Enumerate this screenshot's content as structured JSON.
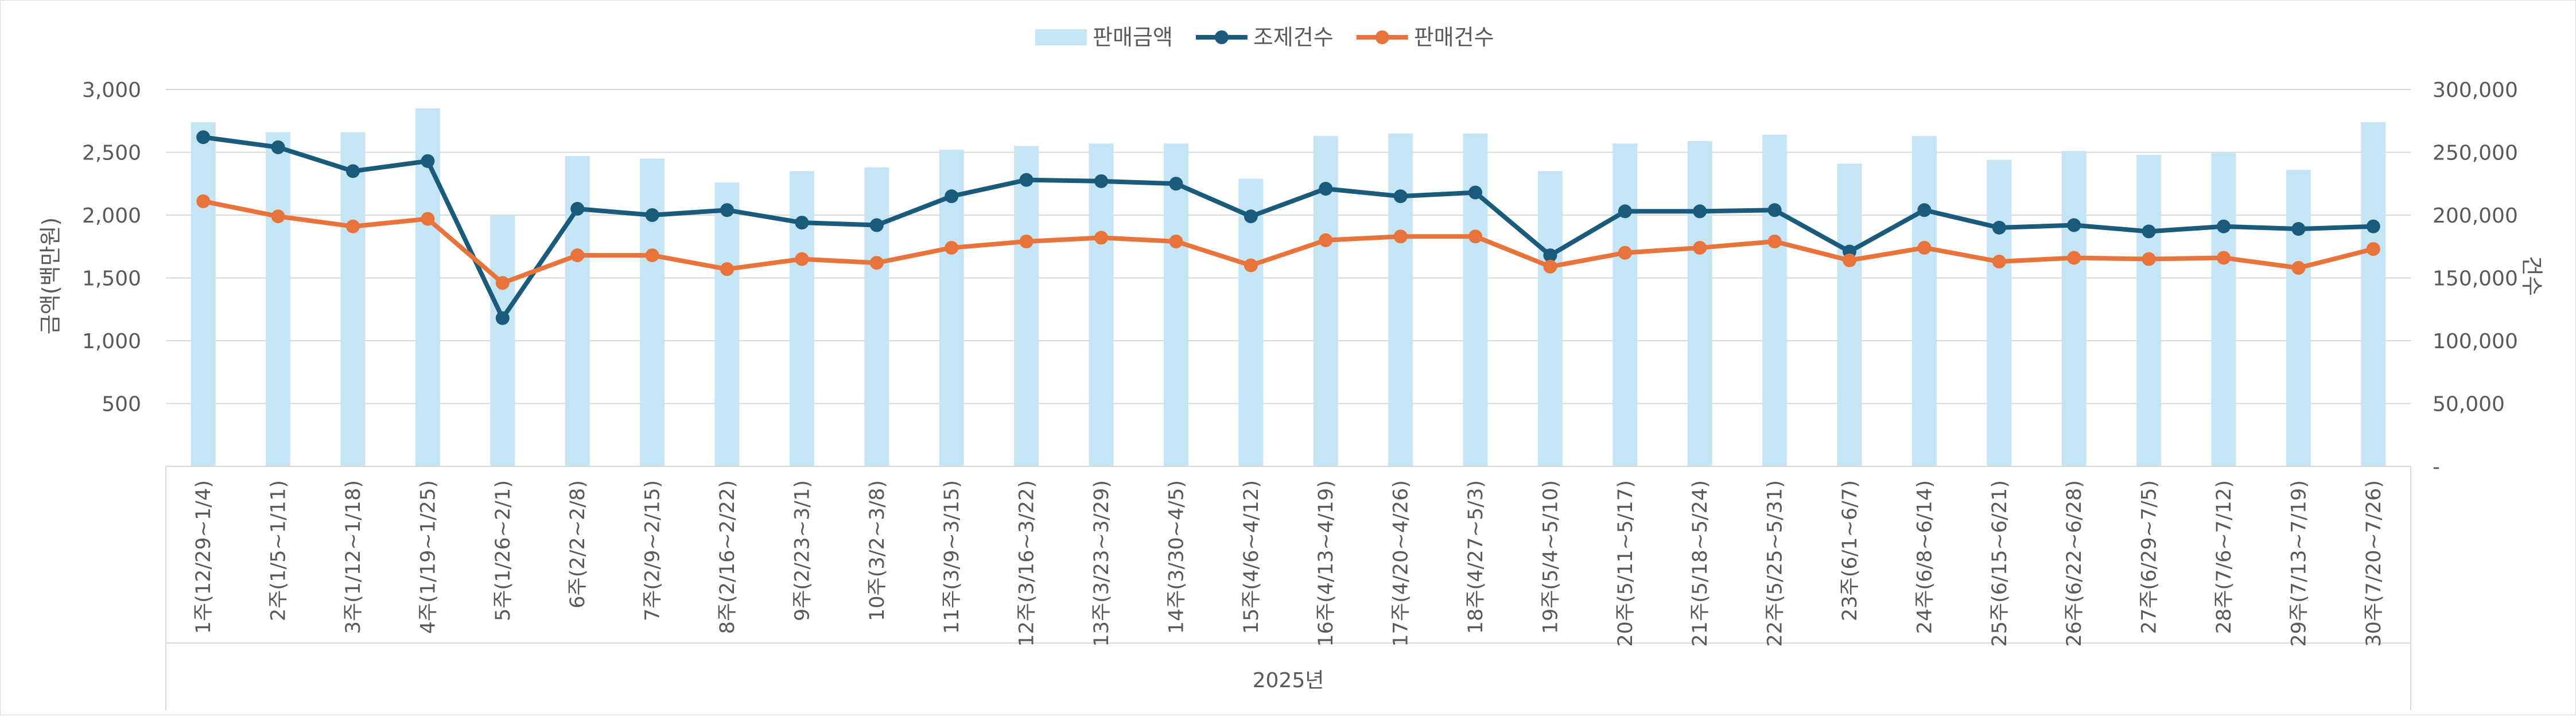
{
  "chart_data": {
    "type": "bar",
    "title": "",
    "xlabel": "2025년",
    "ylabel": "금액(백만원)",
    "y2label": "건수",
    "ylim": [
      0,
      3000
    ],
    "y2lim": [
      0,
      300000
    ],
    "yticks": [
      "500",
      "1,000",
      "1,500",
      "2,000",
      "2,500",
      "3,000"
    ],
    "y2ticks": [
      "-",
      "50,000",
      "100,000",
      "150,000",
      "200,000",
      "250,000",
      "300,000"
    ],
    "legend_position": "top-center",
    "grid": true,
    "categories": [
      "1주(12/29~1/4)",
      "2주(1/5~1/11)",
      "3주(1/12~1/18)",
      "4주(1/19~1/25)",
      "5주(1/26~2/1)",
      "6주(2/2~2/8)",
      "7주(2/9~2/15)",
      "8주(2/16~2/22)",
      "9주(2/23~3/1)",
      "10주(3/2~3/8)",
      "11주(3/9~3/15)",
      "12주(3/16~3/22)",
      "13주(3/23~3/29)",
      "14주(3/30~4/5)",
      "15주(4/6~4/12)",
      "16주(4/13~4/19)",
      "17주(4/20~4/26)",
      "18주(4/27~5/3)",
      "19주(5/4~5/10)",
      "20주(5/11~5/17)",
      "21주(5/18~5/24)",
      "22주(5/25~5/31)",
      "23주(6/1~6/7)",
      "24주(6/8~6/14)",
      "25주(6/15~6/21)",
      "26주(6/22~6/28)",
      "27주(6/29~7/5)",
      "28주(7/6~7/12)",
      "29주(7/13~7/19)",
      "30주(7/20~7/26)"
    ],
    "series": [
      {
        "name": "판매금액",
        "kind": "bar",
        "axis": "left",
        "color": "#c5e5f5",
        "values": [
          2740,
          2660,
          2660,
          2850,
          2000,
          2470,
          2450,
          2260,
          2350,
          2380,
          2520,
          2550,
          2570,
          2570,
          2290,
          2630,
          2650,
          2650,
          2350,
          2570,
          2590,
          2640,
          2410,
          2630,
          2440,
          2510,
          2480,
          2500,
          2360,
          2740
        ]
      },
      {
        "name": "조제건수",
        "kind": "line",
        "axis": "right",
        "color": "#1a5a7a",
        "values": [
          262000,
          254000,
          235000,
          243000,
          118000,
          205000,
          200000,
          204000,
          194000,
          192000,
          215000,
          228000,
          227000,
          225000,
          199000,
          221000,
          215000,
          218000,
          168000,
          203000,
          203000,
          204000,
          171000,
          204000,
          190000,
          192000,
          187000,
          191000,
          189000,
          191000
        ]
      },
      {
        "name": "판매건수",
        "kind": "line",
        "axis": "right",
        "color": "#e8743b",
        "values": [
          211000,
          199000,
          191000,
          197000,
          146000,
          168000,
          168000,
          157000,
          165000,
          162000,
          174000,
          179000,
          182000,
          179000,
          160000,
          180000,
          183000,
          183000,
          159000,
          170000,
          174000,
          179000,
          164000,
          174000,
          163000,
          166000,
          165000,
          166000,
          158000,
          173000
        ]
      }
    ]
  }
}
